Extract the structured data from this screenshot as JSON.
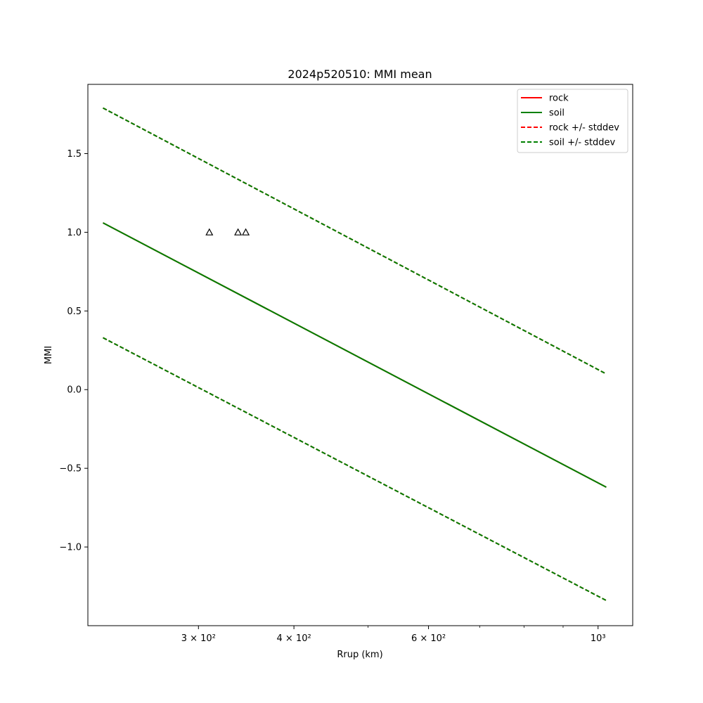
{
  "chart_data": {
    "type": "line",
    "title": "2024p520510: MMI mean",
    "xlabel": "Rrup (km)",
    "ylabel": "MMI",
    "xscale": "log",
    "xlim": [
      215,
      1110
    ],
    "ylim": [
      -1.5,
      1.94
    ],
    "grid": false,
    "legend_position": "top-right",
    "x_ticks": [
      {
        "value": 300,
        "label": "3 × 10²"
      },
      {
        "value": 400,
        "label": "4 × 10²"
      },
      {
        "value": 600,
        "label": "6 × 10²"
      },
      {
        "value": 1000,
        "label": "10³"
      }
    ],
    "x_minor_ticks": [
      500,
      700,
      800,
      900
    ],
    "y_ticks": [
      {
        "value": -1.0,
        "label": "−1.0"
      },
      {
        "value": -0.5,
        "label": "−0.5"
      },
      {
        "value": 0.0,
        "label": "0.0"
      },
      {
        "value": 0.5,
        "label": "0.5"
      },
      {
        "value": 1.0,
        "label": "1.0"
      },
      {
        "value": 1.5,
        "label": "1.5"
      }
    ],
    "series": [
      {
        "name": "rock",
        "color": "#ff0000",
        "style": "solid",
        "x": [
          225,
          1025
        ],
        "y": [
          1.06,
          -0.62
        ]
      },
      {
        "name": "soil",
        "color": "#008000",
        "style": "solid",
        "x": [
          225,
          1025
        ],
        "y": [
          1.06,
          -0.62
        ]
      },
      {
        "name": "rock +/- stddev",
        "color": "#ff0000",
        "style": "dashed",
        "x": [
          225,
          1025
        ],
        "y": [
          1.79,
          0.1
        ],
        "y_lower": [
          0.33,
          -1.34
        ]
      },
      {
        "name": "soil +/- stddev",
        "color": "#008000",
        "style": "dashed",
        "x": [
          225,
          1025
        ],
        "y": [
          1.79,
          0.1
        ],
        "y_lower": [
          0.33,
          -1.34
        ]
      }
    ],
    "observations": {
      "marker": "triangle",
      "color": "#000000",
      "points": [
        {
          "x": 310,
          "y": 1.0
        },
        {
          "x": 338,
          "y": 1.0
        },
        {
          "x": 346,
          "y": 1.0
        }
      ]
    }
  }
}
